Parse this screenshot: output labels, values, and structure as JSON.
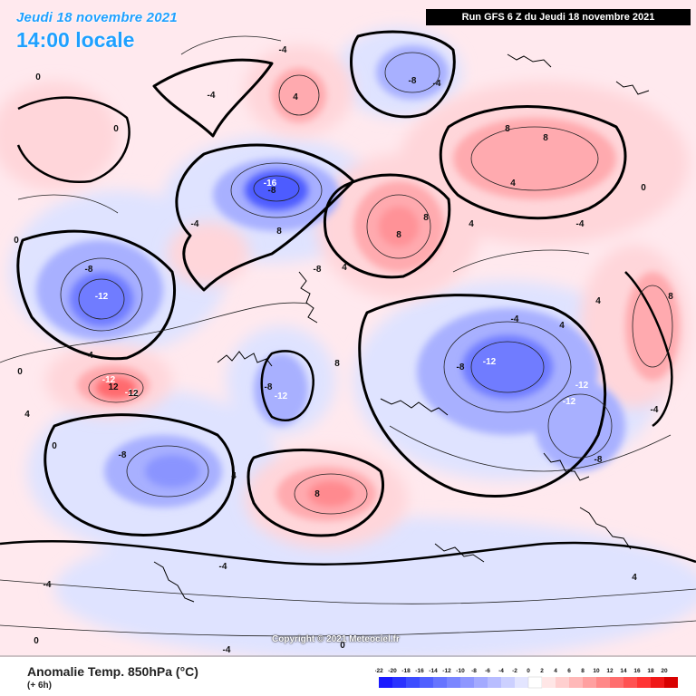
{
  "header": {
    "date_text": "Jeudi 18 novembre 2021",
    "time_text": "14:00 locale",
    "run_text": "Run GFS 6 Z du Jeudi 18 novembre 2021"
  },
  "map": {
    "copyright": "Copyright © 2021 Meteociel.fr",
    "contour_labels": [
      "-16",
      "-12",
      "-12",
      "-12",
      "-12",
      "-12",
      "-12",
      "-12",
      "-8",
      "-8",
      "-8",
      "-8",
      "-8",
      "-8",
      "-8",
      "-8",
      "-4",
      "-4",
      "-4",
      "-4",
      "-4",
      "-4",
      "-4",
      "-4",
      "-4",
      "-4",
      "12",
      "12",
      "8",
      "8",
      "8",
      "8",
      "8",
      "8",
      "8",
      "8",
      "4",
      "4",
      "4",
      "4",
      "4",
      "4",
      "4",
      "4",
      "4",
      "4",
      "0",
      "0",
      "0",
      "0",
      "0",
      "0",
      "0",
      "0"
    ]
  },
  "footer": {
    "title": "Anomalie Temp. 850hPa (°C)",
    "subtitle": "(+ 6h)"
  },
  "scale": {
    "labels": [
      "-22",
      "-20",
      "-18",
      "-16",
      "-14",
      "-12",
      "-10",
      "-8",
      "-6",
      "-4",
      "-2",
      "0",
      "2",
      "4",
      "6",
      "8",
      "10",
      "12",
      "14",
      "16",
      "18",
      "20"
    ],
    "colors": [
      "#1a1aff",
      "#2a33ff",
      "#3d4dff",
      "#5060ff",
      "#6674ff",
      "#7a86ff",
      "#8e97ff",
      "#a3aaff",
      "#b8bdff",
      "#ccd0ff",
      "#e3e5ff",
      "#ffffff",
      "#ffe6e6",
      "#ffcfcf",
      "#ffb8b8",
      "#ffa0a0",
      "#ff8888",
      "#ff6e6e",
      "#ff5252",
      "#ff3434",
      "#f01818",
      "#d80000"
    ]
  }
}
